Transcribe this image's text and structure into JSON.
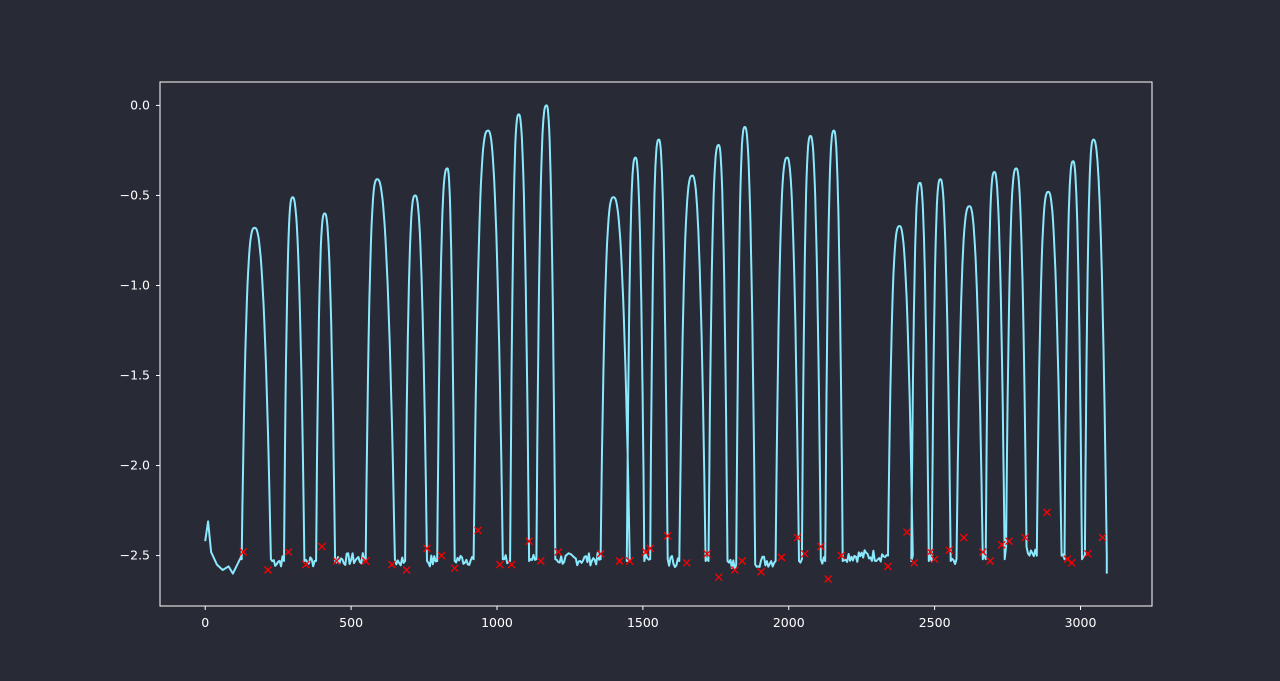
{
  "chart_data": {
    "type": "line",
    "title": "",
    "xlabel": "",
    "ylabel": "",
    "xlim": [
      -155,
      3245
    ],
    "ylim": [
      -2.78,
      0.13
    ],
    "xticks": [
      0,
      500,
      1000,
      1500,
      2000,
      2500,
      3000
    ],
    "xtick_labels": [
      "0",
      "500",
      "1000",
      "1500",
      "2000",
      "2500",
      "3000"
    ],
    "yticks": [
      0.0,
      -0.5,
      -1.0,
      -1.5,
      -2.0,
      -2.5
    ],
    "ytick_labels": [
      "0.0",
      "−0.5",
      "−1.0",
      "−1.5",
      "−2.0",
      "−2.5"
    ],
    "background": "#282a36",
    "axes_color": "#ffffff",
    "series": [
      {
        "kind": "line",
        "color": "#8be9fd",
        "segments": [
          {
            "x": [
              0,
              10,
              20,
              40,
              60,
              80,
              95,
              110,
              125
            ],
            "y": [
              -2.42,
              -2.31,
              -2.48,
              -2.55,
              -2.58,
              -2.56,
              -2.6,
              -2.55,
              -2.5
            ]
          },
          {
            "base": -2.52,
            "x0": 125,
            "x1": 225,
            "peak": -0.68,
            "px": 170
          },
          {
            "base": -2.53,
            "x0": 270,
            "x1": 340,
            "peak": -0.51,
            "px": 300
          },
          {
            "base": -2.53,
            "x0": 380,
            "x1": 445,
            "peak": -0.6,
            "px": 410
          },
          {
            "base": -2.52,
            "x0": 550,
            "x1": 650,
            "peak": -0.41,
            "px": 590
          },
          {
            "base": -2.53,
            "x0": 685,
            "x1": 760,
            "peak": -0.5,
            "px": 720
          },
          {
            "base": -2.53,
            "x0": 795,
            "x1": 855,
            "peak": -0.35,
            "px": 830
          },
          {
            "base": -2.52,
            "x0": 920,
            "x1": 1020,
            "peak": -0.14,
            "px": 970
          },
          {
            "base": -2.53,
            "x0": 1045,
            "x1": 1110,
            "peak": -0.05,
            "px": 1075
          },
          {
            "base": -2.52,
            "x0": 1135,
            "x1": 1200,
            "peak": 0.0,
            "px": 1170
          },
          {
            "base": -2.52,
            "x0": 1355,
            "x1": 1455,
            "peak": -0.51,
            "px": 1400
          },
          {
            "base": -2.53,
            "x0": 1445,
            "x1": 1505,
            "peak": -0.29,
            "px": 1475
          },
          {
            "base": -2.52,
            "x0": 1525,
            "x1": 1585,
            "peak": -0.19,
            "px": 1555
          },
          {
            "base": -2.53,
            "x0": 1625,
            "x1": 1715,
            "peak": -0.39,
            "px": 1670
          },
          {
            "base": -2.53,
            "x0": 1725,
            "x1": 1790,
            "peak": -0.22,
            "px": 1760
          },
          {
            "base": -2.55,
            "x0": 1820,
            "x1": 1885,
            "peak": -0.12,
            "px": 1850
          },
          {
            "base": -2.53,
            "x0": 1955,
            "x1": 2035,
            "peak": -0.29,
            "px": 1995
          },
          {
            "base": -2.52,
            "x0": 2045,
            "x1": 2110,
            "peak": -0.17,
            "px": 2075
          },
          {
            "base": -2.53,
            "x0": 2125,
            "x1": 2185,
            "peak": -0.14,
            "px": 2155
          },
          {
            "base": -2.5,
            "x0": 2340,
            "x1": 2425,
            "peak": -0.67,
            "px": 2380
          },
          {
            "base": -2.53,
            "x0": 2420,
            "x1": 2480,
            "peak": -0.43,
            "px": 2450
          },
          {
            "base": -2.53,
            "x0": 2490,
            "x1": 2555,
            "peak": -0.41,
            "px": 2520
          },
          {
            "base": -2.52,
            "x0": 2575,
            "x1": 2665,
            "peak": -0.56,
            "px": 2620
          },
          {
            "base": -2.52,
            "x0": 2675,
            "x1": 2740,
            "peak": -0.37,
            "px": 2705
          },
          {
            "base": -2.45,
            "x0": 2745,
            "x1": 2815,
            "peak": -0.35,
            "px": 2780
          },
          {
            "base": -2.5,
            "x0": 2850,
            "x1": 2935,
            "peak": -0.48,
            "px": 2890
          },
          {
            "base": -2.52,
            "x0": 2945,
            "x1": 3005,
            "peak": -0.31,
            "px": 2975
          },
          {
            "base": -2.5,
            "x0": 3015,
            "x1": 3090,
            "peak": -0.19,
            "px": 3045
          }
        ]
      },
      {
        "kind": "scatter",
        "marker": "x",
        "color": "#ff0000",
        "points": [
          [
            130,
            -2.48
          ],
          [
            215,
            -2.58
          ],
          [
            285,
            -2.48
          ],
          [
            345,
            -2.55
          ],
          [
            400,
            -2.45
          ],
          [
            450,
            -2.53
          ],
          [
            550,
            -2.53
          ],
          [
            640,
            -2.55
          ],
          [
            690,
            -2.58
          ],
          [
            760,
            -2.46
          ],
          [
            810,
            -2.5
          ],
          [
            855,
            -2.57
          ],
          [
            935,
            -2.36
          ],
          [
            1010,
            -2.55
          ],
          [
            1050,
            -2.55
          ],
          [
            1110,
            -2.42
          ],
          [
            1150,
            -2.53
          ],
          [
            1210,
            -2.48
          ],
          [
            1355,
            -2.49
          ],
          [
            1420,
            -2.53
          ],
          [
            1455,
            -2.53
          ],
          [
            1510,
            -2.48
          ],
          [
            1525,
            -2.46
          ],
          [
            1585,
            -2.39
          ],
          [
            1650,
            -2.54
          ],
          [
            1720,
            -2.49
          ],
          [
            1760,
            -2.62
          ],
          [
            1815,
            -2.58
          ],
          [
            1840,
            -2.53
          ],
          [
            1905,
            -2.59
          ],
          [
            1975,
            -2.51
          ],
          [
            2030,
            -2.4
          ],
          [
            2055,
            -2.49
          ],
          [
            2110,
            -2.45
          ],
          [
            2135,
            -2.63
          ],
          [
            2180,
            -2.5
          ],
          [
            2340,
            -2.56
          ],
          [
            2405,
            -2.37
          ],
          [
            2430,
            -2.54
          ],
          [
            2485,
            -2.48
          ],
          [
            2500,
            -2.52
          ],
          [
            2550,
            -2.47
          ],
          [
            2600,
            -2.4
          ],
          [
            2665,
            -2.48
          ],
          [
            2690,
            -2.53
          ],
          [
            2730,
            -2.44
          ],
          [
            2755,
            -2.42
          ],
          [
            2810,
            -2.4
          ],
          [
            2885,
            -2.26
          ],
          [
            2955,
            -2.52
          ],
          [
            2970,
            -2.54
          ],
          [
            3025,
            -2.49
          ],
          [
            3075,
            -2.4
          ]
        ]
      }
    ]
  }
}
